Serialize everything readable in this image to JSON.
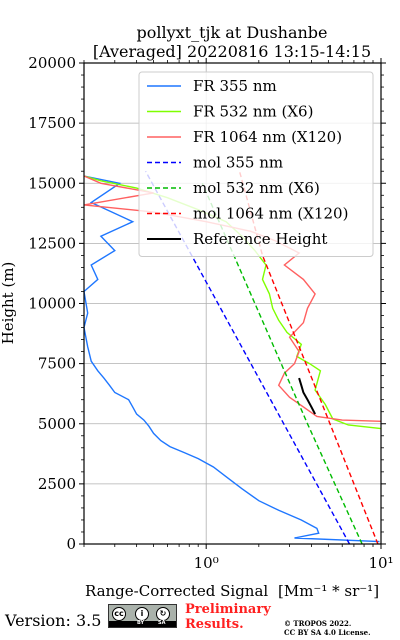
{
  "chart_data": {
    "type": "line",
    "title": "pollyxt_tjk at Dushanbe",
    "subtitle": "[Averaged] 20220816 13:15-14:15",
    "ylabel": "Height (m)",
    "xlabel_text": "Range-Corrected Signal",
    "xlabel_unit": "[Mm⁻¹ * sr⁻¹]",
    "x_scale": "log",
    "xlim": [
      0.2,
      10
    ],
    "ylim": [
      0,
      20000
    ],
    "grid": true,
    "legend_position": "upper right",
    "x_tick_labels": [
      "10⁰",
      "10¹"
    ],
    "x_tick_values": [
      1,
      10
    ],
    "y_ticks": [
      0,
      2500,
      5000,
      7500,
      10000,
      12500,
      15000,
      17500,
      20000
    ],
    "y_tick_labels": [
      "0",
      "2500",
      "5000",
      "7500",
      "10000",
      "12500",
      "15000",
      "17500",
      "20000"
    ],
    "series": [
      {
        "name": "FR 355 nm",
        "color": "#1f77ff",
        "style": "solid",
        "points": [
          [
            9.8,
            100
          ],
          [
            3.2,
            250
          ],
          [
            4.4,
            450
          ],
          [
            4.3,
            650
          ],
          [
            3.5,
            1000
          ],
          [
            2.6,
            1400
          ],
          [
            2.0,
            1800
          ],
          [
            1.6,
            2300
          ],
          [
            1.3,
            2800
          ],
          [
            1.1,
            3200
          ],
          [
            0.9,
            3550
          ],
          [
            0.75,
            3800
          ],
          [
            0.62,
            4050
          ],
          [
            0.55,
            4300
          ],
          [
            0.5,
            4600
          ],
          [
            0.47,
            4900
          ],
          [
            0.44,
            5150
          ],
          [
            0.4,
            5400
          ],
          [
            0.38,
            5700
          ],
          [
            0.36,
            6000
          ],
          [
            0.3,
            6300
          ],
          [
            0.28,
            6600
          ],
          [
            0.26,
            6900
          ],
          [
            0.24,
            7200
          ],
          [
            0.22,
            7600
          ],
          [
            0.21,
            8200
          ],
          [
            0.2,
            9000
          ],
          [
            0.21,
            9600
          ],
          [
            0.2,
            10500
          ],
          [
            0.24,
            11000
          ],
          [
            0.22,
            11600
          ],
          [
            0.3,
            12200
          ],
          [
            0.25,
            12800
          ],
          [
            0.38,
            13400
          ],
          [
            0.22,
            14200
          ],
          [
            0.32,
            15000
          ],
          [
            0.2,
            15300
          ]
        ]
      },
      {
        "name": "FR 532 nm (X6)",
        "color": "#7fff00",
        "style": "solid",
        "points": [
          [
            10,
            4800
          ],
          [
            6.5,
            4950
          ],
          [
            5.3,
            5200
          ],
          [
            4.8,
            5800
          ],
          [
            4.2,
            6400
          ],
          [
            4.5,
            7200
          ],
          [
            3.9,
            7500
          ],
          [
            3.3,
            7800
          ],
          [
            3.5,
            8300
          ],
          [
            2.9,
            8800
          ],
          [
            2.6,
            9300
          ],
          [
            2.4,
            9800
          ],
          [
            2.3,
            10400
          ],
          [
            2.1,
            11000
          ],
          [
            2.2,
            11600
          ],
          [
            1.9,
            12200
          ],
          [
            1.6,
            12800
          ],
          [
            1.3,
            13400
          ],
          [
            0.9,
            13900
          ],
          [
            0.6,
            14400
          ],
          [
            0.4,
            14800
          ],
          [
            0.25,
            15100
          ],
          [
            0.2,
            15300
          ]
        ]
      },
      {
        "name": "FR 1064 nm (X120)",
        "color": "#ff6060",
        "style": "solid",
        "points": [
          [
            10,
            5100
          ],
          [
            6.0,
            5150
          ],
          [
            4.3,
            5300
          ],
          [
            3.6,
            5700
          ],
          [
            3.0,
            6100
          ],
          [
            2.6,
            6600
          ],
          [
            2.8,
            7100
          ],
          [
            3.2,
            7500
          ],
          [
            3.4,
            8000
          ],
          [
            3.0,
            8600
          ],
          [
            3.6,
            9200
          ],
          [
            3.8,
            9800
          ],
          [
            4.2,
            10400
          ],
          [
            3.6,
            11000
          ],
          [
            2.8,
            11600
          ],
          [
            3.4,
            12100
          ],
          [
            2.5,
            12600
          ],
          [
            1.8,
            13000
          ],
          [
            1.0,
            13400
          ],
          [
            0.5,
            13800
          ],
          [
            0.2,
            14100
          ],
          [
            0.5,
            14600
          ],
          [
            0.25,
            15000
          ],
          [
            0.2,
            15300
          ]
        ]
      },
      {
        "name": "mol 355 nm",
        "color": "#0000ff",
        "style": "dashed",
        "points": [
          [
            6.6,
            0
          ],
          [
            0.45,
            15500
          ]
        ]
      },
      {
        "name": "mol 532 nm (X6)",
        "color": "#00bb00",
        "style": "dashed",
        "points": [
          [
            7.8,
            0
          ],
          [
            3.8,
            5000
          ],
          [
            1.9,
            10000
          ],
          [
            0.95,
            15000
          ]
        ]
      },
      {
        "name": "mol 1064 nm (X120)",
        "color": "#ff0000",
        "style": "dashed",
        "points": [
          [
            9.6,
            0
          ],
          [
            4.5,
            6000
          ],
          [
            2.1,
            12000
          ],
          [
            1.55,
            15500
          ]
        ]
      },
      {
        "name": "Reference Height",
        "color": "#000000",
        "style": "solid",
        "points": [
          [
            4.2,
            5400
          ],
          [
            4.0,
            5700
          ],
          [
            3.8,
            6000
          ],
          [
            3.6,
            6300
          ],
          [
            3.5,
            6600
          ],
          [
            3.4,
            6900
          ]
        ]
      }
    ]
  },
  "footer": {
    "version": "Version: 3.5",
    "license_badge": [
      "cc",
      "i",
      "↻"
    ],
    "license_badge_text": [
      "BY",
      "SA"
    ],
    "preliminary_1": "Preliminary",
    "preliminary_2": "Results.",
    "copyright": "© TROPOS 2022.",
    "license": "CC BY SA 4.0 License."
  }
}
